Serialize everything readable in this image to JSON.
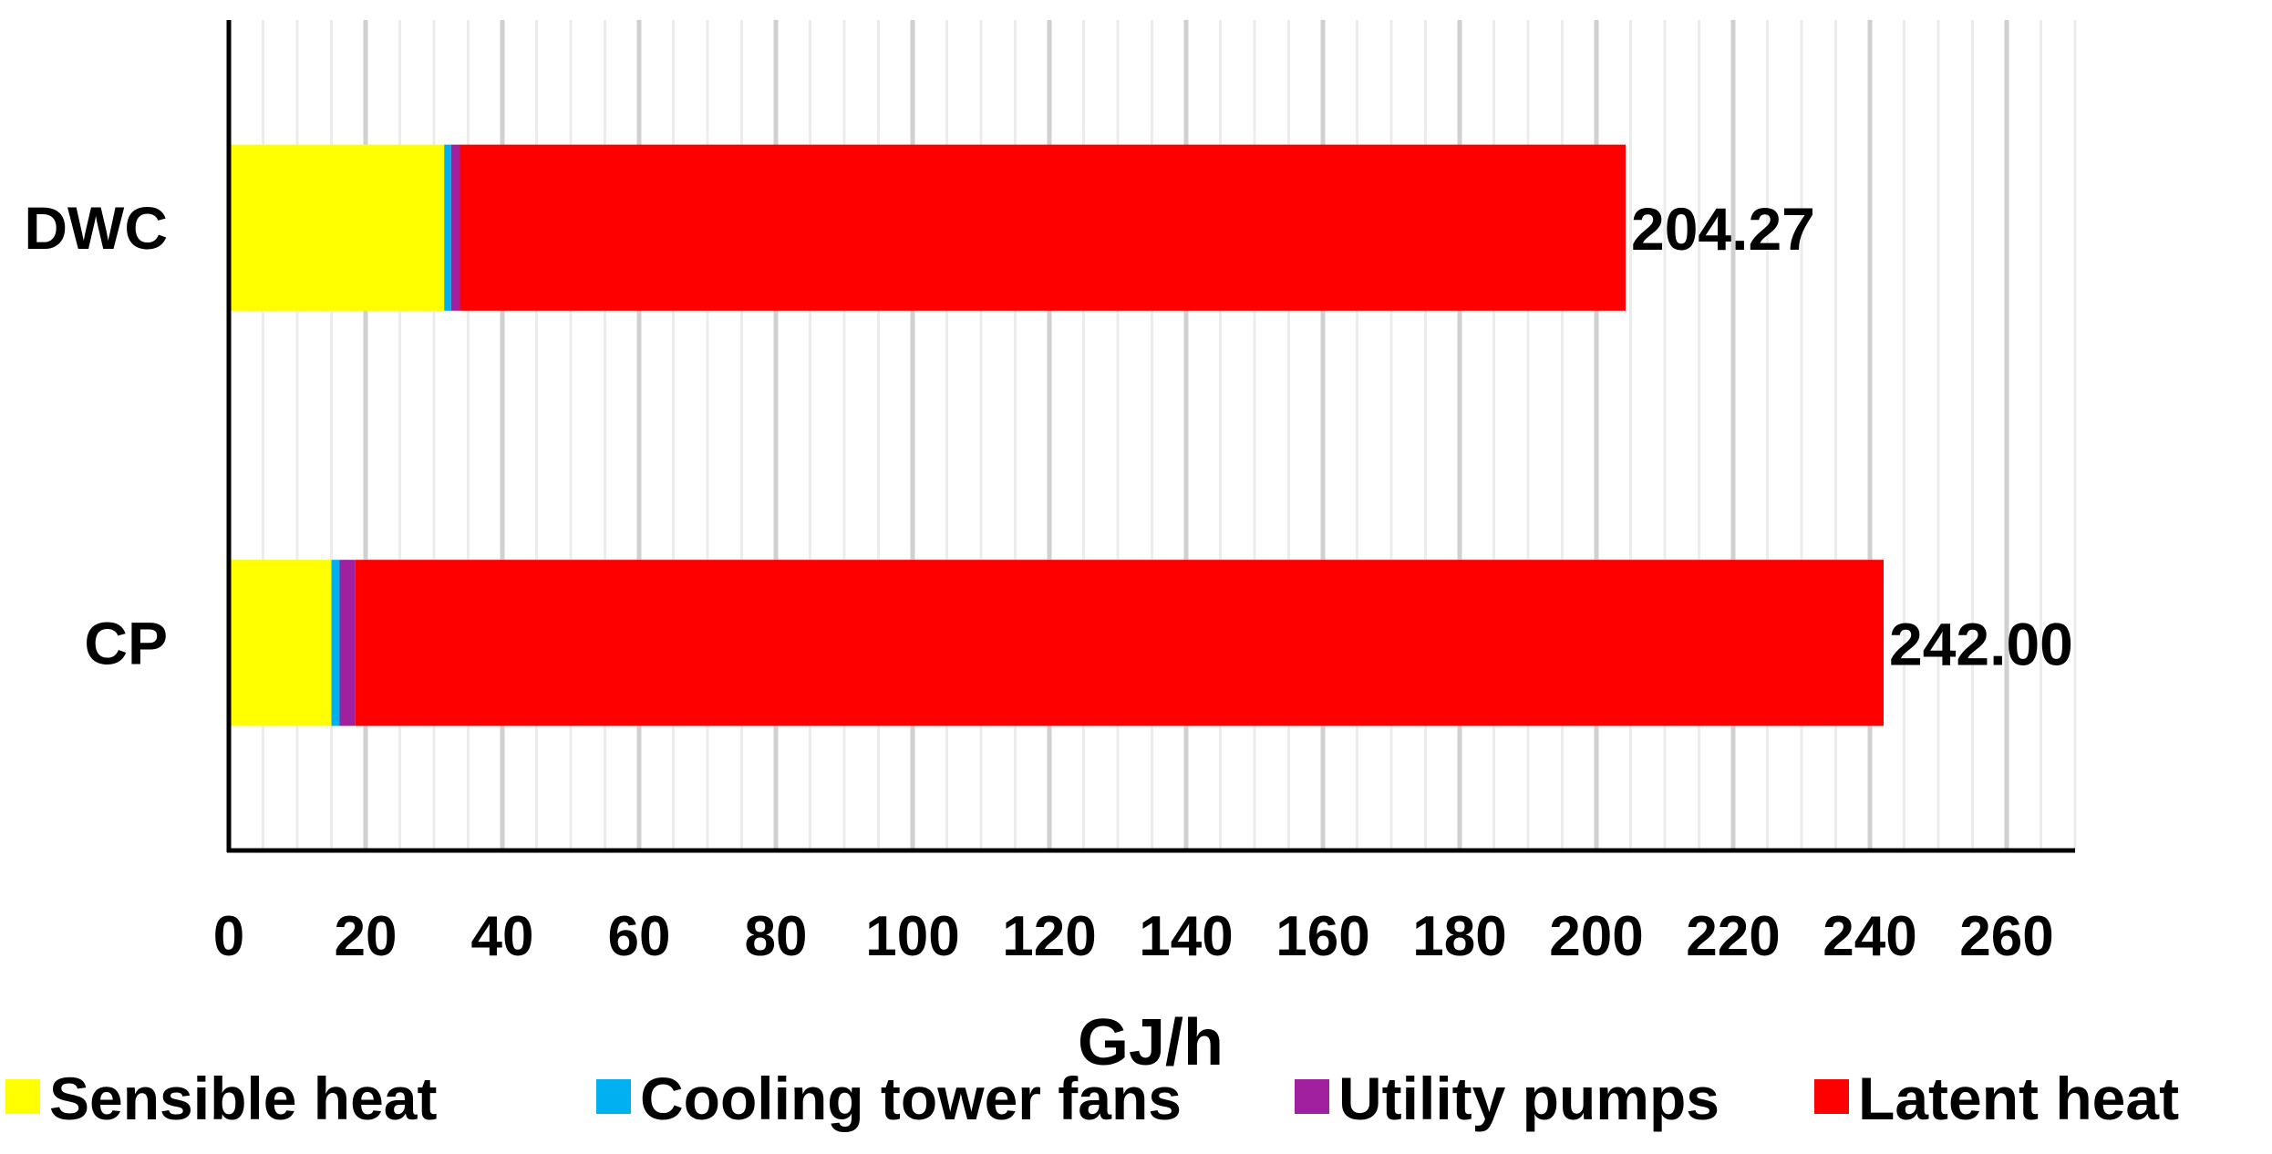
{
  "chart_data": {
    "type": "bar",
    "orientation": "horizontal",
    "stacked": true,
    "categories": [
      "DWC",
      "CP"
    ],
    "series": [
      {
        "name": "Sensible heat",
        "color": "#FFFF00",
        "values": [
          31.5,
          15.0
        ]
      },
      {
        "name": "Cooling tower fans",
        "color": "#00B0F0",
        "values": [
          1.0,
          1.2
        ]
      },
      {
        "name": "Utility pumps",
        "color": "#A020A0",
        "values": [
          1.3,
          2.3
        ]
      },
      {
        "name": "Latent heat",
        "color": "#FF0000",
        "values": [
          170.47,
          223.5
        ]
      }
    ],
    "totals": [
      "204.27",
      "242.00"
    ],
    "xlabel": "GJ/h",
    "ylabel": "",
    "xlim": [
      0,
      270
    ],
    "xticks": [
      0,
      20,
      40,
      60,
      80,
      100,
      120,
      140,
      160,
      180,
      200,
      220,
      240,
      260
    ],
    "grid": "vertical",
    "legend_position": "bottom"
  }
}
